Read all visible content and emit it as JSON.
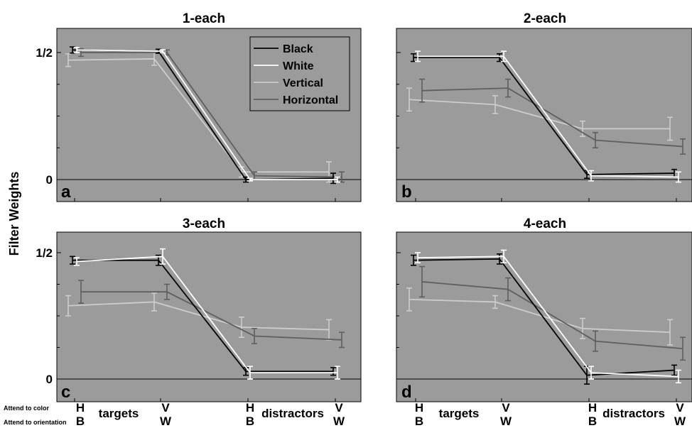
{
  "y_axis_label": "Filter Weights",
  "bottom_row_labels": {
    "color": "Attend to color",
    "orientation": "Attend to orientation"
  },
  "group_labels": {
    "targets": "targets",
    "distractors": "distractors"
  },
  "category_letters": {
    "color": [
      "H",
      "V",
      "H",
      "V"
    ],
    "orientation": [
      "B",
      "W",
      "B",
      "W"
    ]
  },
  "colors": {
    "plot_bg": "#9b9b9b",
    "Black": "#000000",
    "White": "#ffffff",
    "Vertical": "#cdcdcd",
    "Horizontal": "#5f5f5f"
  },
  "legend": {
    "entries": [
      "Black",
      "White",
      "Vertical",
      "Horizontal"
    ],
    "placement": "top-right of panel a"
  },
  "chart_data": [
    {
      "type": "line",
      "panel": "a",
      "title": "1-each",
      "x_positions": [
        1,
        2,
        3,
        4
      ],
      "ylim": [
        -0.05,
        0.59
      ],
      "yticks": [
        {
          "value": 0,
          "label": "0"
        },
        {
          "value": 0.5,
          "label": "1/2"
        }
      ],
      "series": [
        {
          "name": "Black",
          "values": [
            0.51,
            0.505,
            0.0,
            0.005
          ],
          "errors": [
            0.012,
            0.008,
            0.01,
            0.02
          ]
        },
        {
          "name": "White",
          "values": [
            0.51,
            0.505,
            0.0,
            0.0
          ],
          "errors": [
            0.01,
            0.006,
            0.005,
            0.01
          ]
        },
        {
          "name": "Vertical",
          "values": [
            0.47,
            0.475,
            0.03,
            0.03
          ],
          "errors": [
            0.025,
            0.025,
            0.02,
            0.04
          ]
        },
        {
          "name": "Horizontal",
          "values": [
            0.5,
            0.5,
            0.015,
            0.01
          ],
          "errors": [
            0.015,
            0.01,
            0.015,
            0.02
          ]
        }
      ]
    },
    {
      "type": "line",
      "panel": "b",
      "title": "2-each",
      "x_positions": [
        1,
        2,
        3,
        4
      ],
      "ylim": [
        -0.05,
        0.59
      ],
      "yticks": [
        {
          "value": 0,
          "label": ""
        },
        {
          "value": 0.5,
          "label": ""
        }
      ],
      "series": [
        {
          "name": "Black",
          "values": [
            0.48,
            0.48,
            0.02,
            0.025
          ],
          "errors": [
            0.015,
            0.015,
            0.015,
            0.015
          ]
        },
        {
          "name": "White",
          "values": [
            0.485,
            0.485,
            0.015,
            0.01
          ],
          "errors": [
            0.02,
            0.02,
            0.02,
            0.02
          ]
        },
        {
          "name": "Vertical",
          "values": [
            0.315,
            0.295,
            0.2,
            0.2
          ],
          "errors": [
            0.045,
            0.035,
            0.03,
            0.045
          ]
        },
        {
          "name": "Horizontal",
          "values": [
            0.35,
            0.36,
            0.155,
            0.13
          ],
          "errors": [
            0.045,
            0.035,
            0.03,
            0.03
          ]
        }
      ]
    },
    {
      "type": "line",
      "panel": "c",
      "title": "3-each",
      "x_positions": [
        1,
        2,
        3,
        4
      ],
      "ylim": [
        -0.05,
        0.59
      ],
      "yticks": [
        {
          "value": 0,
          "label": "0"
        },
        {
          "value": 0.5,
          "label": "1/2"
        }
      ],
      "series": [
        {
          "name": "Black",
          "values": [
            0.47,
            0.47,
            0.03,
            0.03
          ],
          "errors": [
            0.015,
            0.02,
            0.015,
            0.015
          ]
        },
        {
          "name": "White",
          "values": [
            0.465,
            0.485,
            0.025,
            0.025
          ],
          "errors": [
            0.015,
            0.03,
            0.025,
            0.025
          ]
        },
        {
          "name": "Vertical",
          "values": [
            0.29,
            0.305,
            0.205,
            0.195
          ],
          "errors": [
            0.04,
            0.035,
            0.04,
            0.04
          ]
        },
        {
          "name": "Horizontal",
          "values": [
            0.345,
            0.345,
            0.17,
            0.155
          ],
          "errors": [
            0.045,
            0.03,
            0.03,
            0.03
          ]
        }
      ]
    },
    {
      "type": "line",
      "panel": "d",
      "title": "4-each",
      "x_positions": [
        1,
        2,
        3,
        4
      ],
      "ylim": [
        -0.05,
        0.59
      ],
      "yticks": [
        {
          "value": 0,
          "label": ""
        },
        {
          "value": 0.5,
          "label": ""
        }
      ],
      "series": [
        {
          "name": "Black",
          "values": [
            0.47,
            0.475,
            0.015,
            0.035
          ],
          "errors": [
            0.02,
            0.02,
            0.035,
            0.02
          ]
        },
        {
          "name": "White",
          "values": [
            0.48,
            0.485,
            0.025,
            0.01
          ],
          "errors": [
            0.02,
            0.025,
            0.025,
            0.025
          ]
        },
        {
          "name": "Vertical",
          "values": [
            0.315,
            0.305,
            0.2,
            0.185
          ],
          "errors": [
            0.045,
            0.025,
            0.04,
            0.05
          ]
        },
        {
          "name": "Horizontal",
          "values": [
            0.385,
            0.355,
            0.15,
            0.12
          ],
          "errors": [
            0.06,
            0.045,
            0.04,
            0.045
          ]
        }
      ]
    }
  ]
}
